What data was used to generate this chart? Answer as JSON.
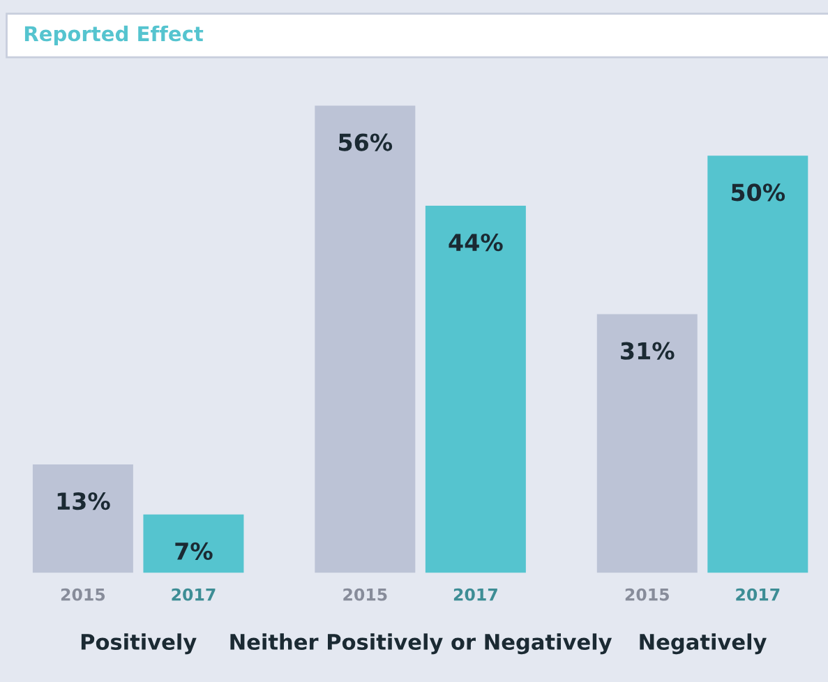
{
  "chart_data": {
    "type": "bar",
    "title": "Reported Effect",
    "categories": [
      "Positively",
      "Neither Positively or Negatively",
      "Negatively"
    ],
    "series": [
      {
        "name": "2015",
        "color": "#bcc3d6",
        "values": [
          13,
          56,
          31
        ],
        "value_labels": [
          "13%",
          "56%",
          "31%"
        ]
      },
      {
        "name": "2017",
        "color": "#55c4cf",
        "values": [
          7,
          44,
          50
        ],
        "value_labels": [
          "7%",
          "44%",
          "50%"
        ]
      }
    ]
  }
}
